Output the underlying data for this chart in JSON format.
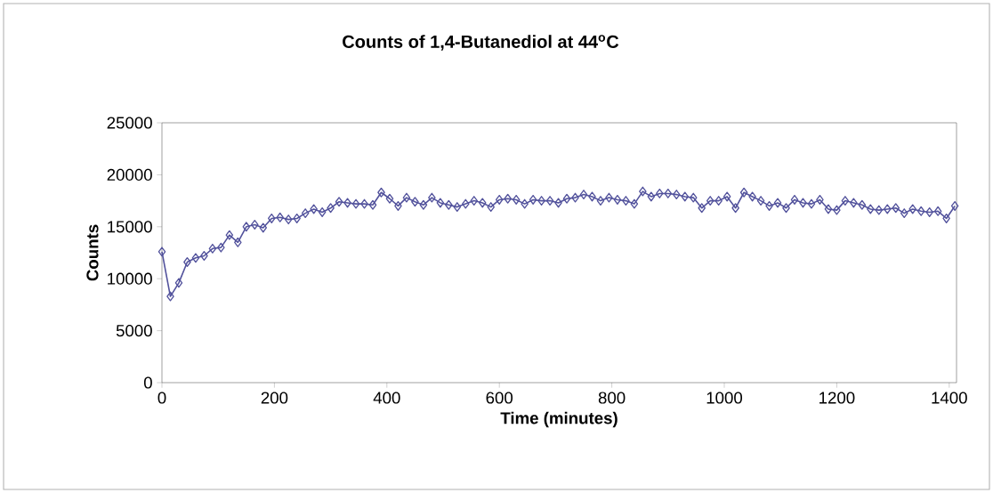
{
  "chart_data": {
    "type": "line",
    "title": "Counts of 1,4-Butanediol at 44$^{o}$C",
    "xlabel": "Time (minutes)",
    "ylabel": "Counts",
    "x": [
      0,
      15,
      30,
      45,
      60,
      75,
      90,
      105,
      120,
      135,
      150,
      165,
      180,
      195,
      210,
      225,
      240,
      255,
      270,
      285,
      300,
      315,
      330,
      345,
      360,
      375,
      390,
      405,
      420,
      435,
      450,
      465,
      480,
      495,
      510,
      525,
      540,
      555,
      570,
      585,
      600,
      615,
      630,
      645,
      660,
      675,
      690,
      705,
      720,
      735,
      750,
      765,
      780,
      795,
      810,
      825,
      840,
      855,
      870,
      885,
      900,
      915,
      930,
      945,
      960,
      975,
      990,
      1005,
      1020,
      1035,
      1050,
      1065,
      1080,
      1095,
      1110,
      1125,
      1140,
      1155,
      1170,
      1185,
      1200,
      1215,
      1230,
      1245,
      1260,
      1275,
      1290,
      1305,
      1320,
      1335,
      1350,
      1365,
      1380,
      1395,
      1410
    ],
    "series": [
      {
        "color": "#52529c",
        "values": [
          12600,
          8300,
          9600,
          11600,
          12000,
          12200,
          12900,
          13000,
          14200,
          13500,
          15000,
          15200,
          14900,
          15800,
          15900,
          15700,
          15800,
          16300,
          16700,
          16400,
          16800,
          17400,
          17300,
          17200,
          17200,
          17100,
          18300,
          17700,
          17000,
          17800,
          17400,
          17100,
          17800,
          17300,
          17100,
          16900,
          17200,
          17500,
          17300,
          16900,
          17600,
          17700,
          17600,
          17200,
          17600,
          17500,
          17500,
          17300,
          17700,
          17800,
          18100,
          17900,
          17500,
          17800,
          17600,
          17500,
          17200,
          18400,
          17900,
          18200,
          18200,
          18100,
          17900,
          17800,
          16800,
          17500,
          17500,
          17900,
          16800,
          18300,
          17900,
          17500,
          17000,
          17300,
          16800,
          17600,
          17300,
          17200,
          17600,
          16700,
          16600,
          17500,
          17300,
          17100,
          16700,
          16600,
          16700,
          16800,
          16300,
          16700,
          16500,
          16400,
          16500,
          15800,
          17000
        ]
      }
    ],
    "xlim": [
      0,
      1413
    ],
    "ylim": [
      0,
      25000
    ],
    "xticks": [
      0,
      200,
      400,
      600,
      800,
      1000,
      1200,
      1400
    ],
    "yticks": [
      0,
      5000,
      10000,
      15000,
      20000,
      25000
    ],
    "marker": "diamond",
    "line_style": "solid"
  }
}
